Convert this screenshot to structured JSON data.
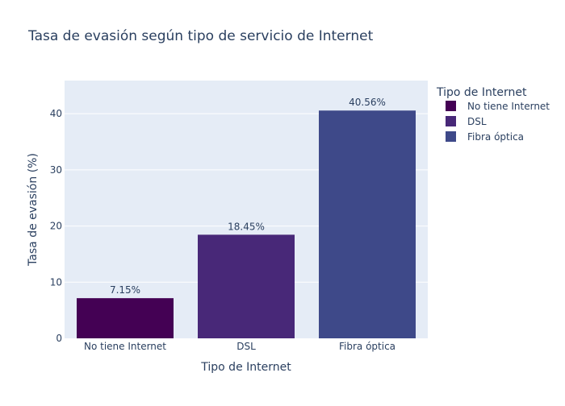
{
  "chart_data": {
    "type": "bar",
    "title": "Tasa de evasión según tipo de servicio de Internet",
    "xlabel": "Tipo de Internet",
    "ylabel": "Tasa de evasión (%)",
    "categories": [
      "No tiene Internet",
      "DSL",
      "Fibra óptica"
    ],
    "values": [
      7.15,
      18.45,
      40.56
    ],
    "data_labels": [
      "7.15%",
      "18.45%",
      "40.56%"
    ],
    "colors": [
      "#440154",
      "#482878",
      "#3e4989"
    ],
    "ylim": [
      0,
      45.9
    ],
    "yticks": [
      0,
      10,
      20,
      30,
      40
    ],
    "grid": true,
    "legend": {
      "title": "Tipo de Internet",
      "position": "top-right",
      "entries": [
        "No tiene Internet",
        "DSL",
        "Fibra óptica"
      ]
    },
    "plot_background": "#e5ecf6"
  }
}
